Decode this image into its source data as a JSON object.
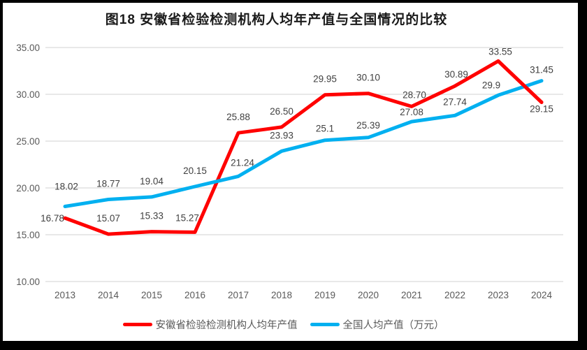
{
  "frame": {
    "border_color": "#000000",
    "background": "#ffffff"
  },
  "chart_data": {
    "type": "line",
    "title": "图18 安徽省检验检测机构人均年产值与全国情况的比较",
    "categories": [
      "2013",
      "2014",
      "2015",
      "2016",
      "2017",
      "2018",
      "2019",
      "2020",
      "2021",
      "2022",
      "2023",
      "2024"
    ],
    "series": [
      {
        "name": "安徽省检验检测机构人均年产值",
        "color": "#ff0000",
        "values": [
          16.78,
          15.07,
          15.33,
          15.27,
          25.88,
          26.5,
          29.95,
          30.1,
          28.7,
          30.89,
          33.55,
          29.15
        ],
        "labels": [
          "16.78",
          "15.07",
          "15.33",
          "15.27",
          "25.88",
          "26.50",
          "29.95",
          "30.10",
          "28.70",
          "30.89",
          "33.55",
          "29.15"
        ]
      },
      {
        "name": "全国人均产值（万元）",
        "color": "#00b0f0",
        "values": [
          18.02,
          18.77,
          19.04,
          20.15,
          21.24,
          23.93,
          25.1,
          25.39,
          27.08,
          27.74,
          29.9,
          31.45
        ],
        "labels": [
          "18.02",
          "18.77",
          "19.04",
          "20.15",
          "21.24",
          "23.93",
          "25.1",
          "25.39",
          "27.08",
          "27.74",
          "29.9",
          "31.45"
        ]
      }
    ],
    "y_axis": {
      "min": 10,
      "max": 35,
      "step": 5,
      "tick_labels": [
        "35.00",
        "30.00",
        "25.00",
        "20.00",
        "15.00",
        "10.00"
      ]
    },
    "x_axis_label_color": "#595959",
    "data_label_color": "#404040",
    "gridline_color": "#d9d9d9",
    "grid": true,
    "legend_position": "bottom",
    "label_offsets": {
      "0": {
        "0": [
          -18,
          5
        ],
        "3": [
          -11,
          -16
        ],
        "8": [
          4,
          -12
        ],
        "9": [
          2,
          -12
        ],
        "10": [
          3,
          -9
        ],
        "11": [
          0,
          14
        ]
      },
      "1": {
        "0": [
          2,
          -24
        ],
        "4": [
          6,
          -15
        ],
        "6": [
          0,
          -12
        ],
        "7": [
          0,
          -13
        ],
        "8": [
          0,
          -9
        ],
        "9": [
          0,
          -15
        ],
        "10": [
          -10,
          -10
        ],
        "11": [
          0,
          -11
        ]
      }
    },
    "overlay_segments": [
      {
        "series": 0,
        "from": 10,
        "to": 11
      }
    ]
  }
}
